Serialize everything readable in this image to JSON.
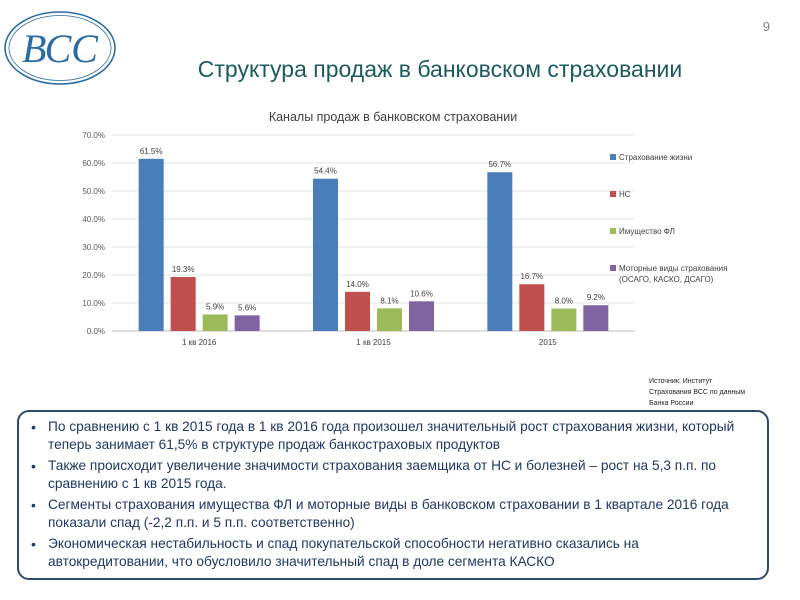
{
  "header": {
    "logo_text": "ВСС",
    "page_number": "9",
    "title": "Структура  продаж в банковском страховании"
  },
  "chart_data": {
    "type": "bar",
    "title": "Каналы продаж в банковском страховании",
    "xlabel": "",
    "ylabel": "",
    "categories": [
      "1 кв 2016",
      "1 кв 2015",
      "2015"
    ],
    "series": [
      {
        "name": "Страхование жизни",
        "values": [
          61.5,
          54.4,
          56.7
        ],
        "labels": [
          "61.5%",
          "54.4%",
          "56.7%"
        ],
        "color": "#4a7ebb"
      },
      {
        "name": "НС",
        "values": [
          19.3,
          14.0,
          16.7
        ],
        "labels": [
          "19.3%",
          "14.0%",
          "16.7%"
        ],
        "color": "#c0504d"
      },
      {
        "name": "Имущество ФЛ",
        "values": [
          5.9,
          8.1,
          8.0
        ],
        "labels": [
          "5.9%",
          "8.1%",
          "8.0%"
        ],
        "color": "#9bbb59"
      },
      {
        "name": "Моторные виды страхования (ОСАГО, КАСКО, ДСАГО)",
        "name_lines": [
          "Моторные виды страхования",
          "(ОСАГО, КАСКО, ДСАГО)"
        ],
        "values": [
          5.6,
          10.6,
          9.2
        ],
        "labels": [
          "5.6%",
          "10.6%",
          "9.2%"
        ],
        "color": "#8064a2"
      }
    ],
    "ylim": [
      0,
      70
    ],
    "yticks": [
      "0.0%",
      "10.0%",
      "20.0%",
      "30.0%",
      "40.0%",
      "50.0%",
      "60.0%",
      "70.0%"
    ],
    "grid": true,
    "legend_position": "right"
  },
  "source_note": {
    "lines": [
      "Источник: Институт",
      "Страхования ВСС по данным",
      "Банка России"
    ]
  },
  "bullets": [
    "По сравнению с 1 кв 2015 года в 1 кв 2016 года произошел значительный рост страхования жизни, который теперь занимает 61,5% в структуре продаж банкостраховых продуктов",
    "Также происходит увеличение значимости страхования заемщика от НС и болезней – рост на 5,3 п.п. по сравнению с 1 кв 2015 года.",
    "Сегменты страхования имущества ФЛ и моторные виды в банковском страховании в 1 квартале 2016 года показали спад (-2,2 п.п. и 5 п.п. соответственно)",
    "Экономическая нестабильность и спад покупательской способности негативно сказались на автокредитовании, что обусловило значительный спад в доле сегмента КАСКО"
  ]
}
